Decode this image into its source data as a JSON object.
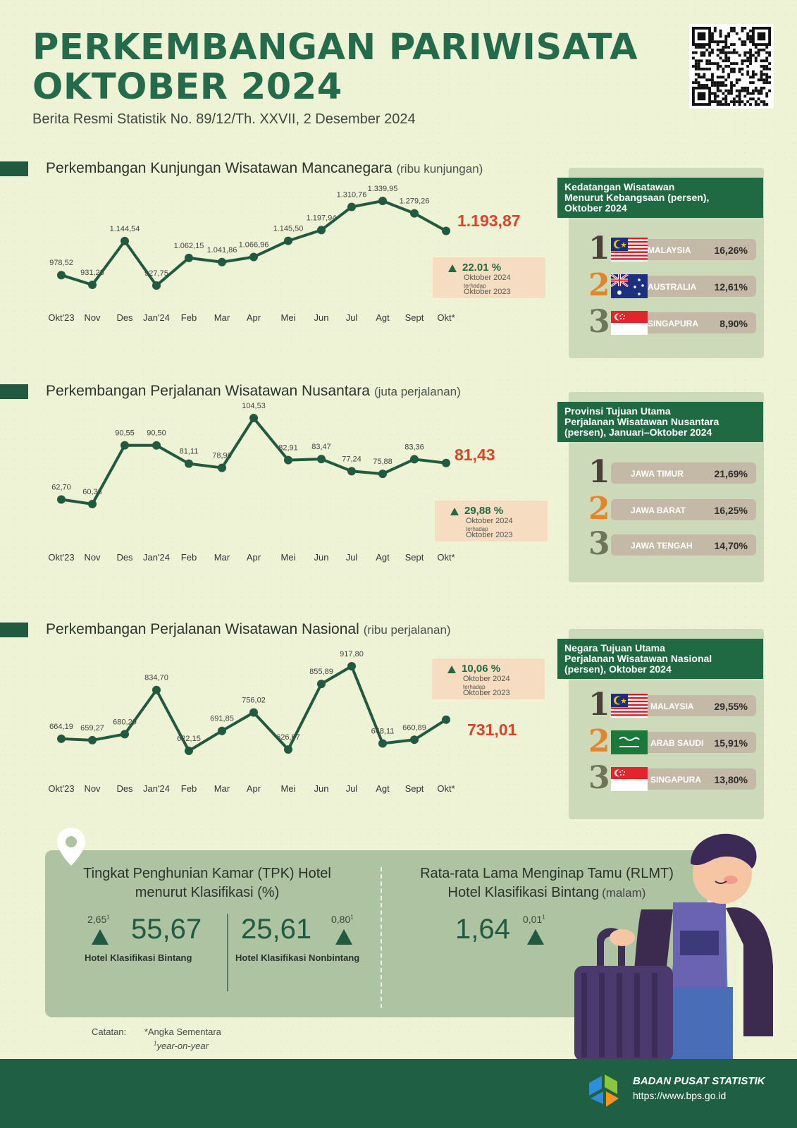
{
  "header": {
    "title_line1": "PERKEMBANGAN PARIWISATA",
    "title_line2": "OKTOBER 2024",
    "subtitle": "Berita Resmi Statistik No. 89/12/Th. XXVII, 2 Desember 2024"
  },
  "chart_data": [
    {
      "type": "line",
      "title": "Perkembangan Kunjungan Wisatawan Mancanegara",
      "unit": "(ribu kunjungan)",
      "categories": [
        "Okt'23",
        "Nov",
        "Des",
        "Jan'24",
        "Feb",
        "Mar",
        "Apr",
        "Mei",
        "Jun",
        "Jul",
        "Agt",
        "Sept",
        "Okt*"
      ],
      "values": [
        978.52,
        931.23,
        1144.54,
        927.75,
        1062.15,
        1041.86,
        1066.96,
        1145.5,
        1197.94,
        1310.76,
        1339.95,
        1279.26,
        1193.87
      ],
      "labels": [
        "978,52",
        "931,23",
        "1.144,54",
        "927,75",
        "1.062,15",
        "1.041,86",
        "1.066,96",
        "1.145,50",
        "1.197,94",
        "1.310,76",
        "1.339,95",
        "1.279,26"
      ],
      "latest_label": "1.193,87",
      "growth": {
        "value": "22.01 %",
        "line1": "Oktober 2024",
        "line2": "terhadap",
        "line3": "Oktober 2023"
      },
      "color": "#1f5a41"
    },
    {
      "type": "line",
      "title": "Perkembangan Perjalanan Wisatawan Nusantara",
      "unit": "(juta perjalanan)",
      "categories": [
        "Okt'23",
        "Nov",
        "Des",
        "Jan'24",
        "Feb",
        "Mar",
        "Apr",
        "Mei",
        "Jun",
        "Jul",
        "Agt",
        "Sept",
        "Okt*"
      ],
      "values": [
        62.7,
        60.33,
        90.55,
        90.5,
        81.11,
        78.96,
        104.53,
        82.91,
        83.47,
        77.24,
        75.88,
        83.36,
        81.43
      ],
      "labels": [
        "62,70",
        "60,33",
        "90,55",
        "90,50",
        "81,11",
        "78,96",
        "104,53",
        "82,91",
        "83,47",
        "77,24",
        "75,88",
        "83,36"
      ],
      "latest_label": "81,43",
      "growth": {
        "value": "29,88 %",
        "line1": "Oktober 2024",
        "line2": "terhadap",
        "line3": "Oktober 2023"
      },
      "color": "#1f5a41"
    },
    {
      "type": "line",
      "title": "Perkembangan Perjalanan Wisatawan Nasional",
      "unit": "(ribu perjalanan)",
      "categories": [
        "Okt'23",
        "Nov",
        "Des",
        "Jan'24",
        "Feb",
        "Mar",
        "Apr",
        "Mei",
        "Jun",
        "Jul",
        "Agt",
        "Sept",
        "Okt*"
      ],
      "values": [
        664.19,
        659.27,
        680.29,
        834.7,
        622.15,
        691.85,
        756.02,
        626.67,
        855.89,
        917.8,
        648.11,
        660.89,
        731.01
      ],
      "labels": [
        "664,19",
        "659,27",
        "680,29",
        "834,70",
        "622,15",
        "691,85",
        "756,02",
        "626,67",
        "855,89",
        "917,80",
        "648,11",
        "660,89"
      ],
      "latest_label": "731,01",
      "growth": {
        "value": "10,06 %",
        "line1": "Oktober 2024",
        "line2": "terhadap",
        "line3": "Oktober 2023"
      },
      "color": "#1f5a41"
    }
  ],
  "panels": {
    "mancanegara": {
      "title_line1": "Kedatangan Wisatawan",
      "title_line2": "Menurut Kebangsaan (persen),",
      "title_line3": "Oktober 2024",
      "rows": [
        {
          "rank": "1",
          "name": "MALAYSIA",
          "pct": "16,26%",
          "flag": "malaysia-flag"
        },
        {
          "rank": "2",
          "name": "AUSTRALIA",
          "pct": "12,61%",
          "flag": "australia-flag"
        },
        {
          "rank": "3",
          "name": "SINGAPURA",
          "pct": "8,90%",
          "flag": "singapore-flag"
        }
      ]
    },
    "nusantara": {
      "title_line1": "Provinsi Tujuan Utama",
      "title_line2": "Perjalanan Wisatawan Nusantara",
      "title_line3": "(persen), Januari–Oktober 2024",
      "rows": [
        {
          "rank": "1",
          "name": "JAWA TIMUR",
          "pct": "21,69%"
        },
        {
          "rank": "2",
          "name": "JAWA BARAT",
          "pct": "16,25%"
        },
        {
          "rank": "3",
          "name": "JAWA TENGAH",
          "pct": "14,70%"
        }
      ]
    },
    "nasional": {
      "title_line1": "Negara Tujuan Utama",
      "title_line2": "Perjalanan Wisatawan Nasional",
      "title_line3": "(persen), Oktober 2024",
      "rows": [
        {
          "rank": "1",
          "name": "MALAYSIA",
          "pct": "29,55%",
          "flag": "malaysia-flag"
        },
        {
          "rank": "2",
          "name": "ARAB SAUDI",
          "pct": "15,91%",
          "flag": "saudi-flag"
        },
        {
          "rank": "3",
          "name": "SINGAPURA",
          "pct": "13,80%",
          "flag": "singapore-flag"
        }
      ]
    }
  },
  "hotel": {
    "tpk_title_line1": "Tingkat Penghunian Kamar (TPK) Hotel",
    "tpk_title_line2": "menurut Klasifikasi (%)",
    "bintang_value": "55,67",
    "bintang_change": "2,65",
    "bintang_label": "Hotel Klasifikasi Bintang",
    "nonbintang_value": "25,61",
    "nonbintang_change": "0,80",
    "nonbintang_label": "Hotel Klasifikasi Nonbintang",
    "rlmt_title_line1": "Rata-rata Lama Menginap Tamu (RLMT)",
    "rlmt_title_line2": "Hotel Klasifikasi Bintang",
    "rlmt_unit": "(malam)",
    "rlmt_value": "1,64",
    "rlmt_change": "0,01",
    "footnote_mark": "1"
  },
  "notes": {
    "label": "Catatan:",
    "line1": "*Angka Sementara",
    "line2_mark": "1",
    "line2": "year-on-year"
  },
  "footer": {
    "org": "BADAN PUSAT STATISTIK",
    "url": "https://www.bps.go.id"
  },
  "colors": {
    "accent": "#236b4a",
    "highlight": "#d9432c",
    "panel": "#b7c9a5",
    "footer": "#1f5f44"
  }
}
